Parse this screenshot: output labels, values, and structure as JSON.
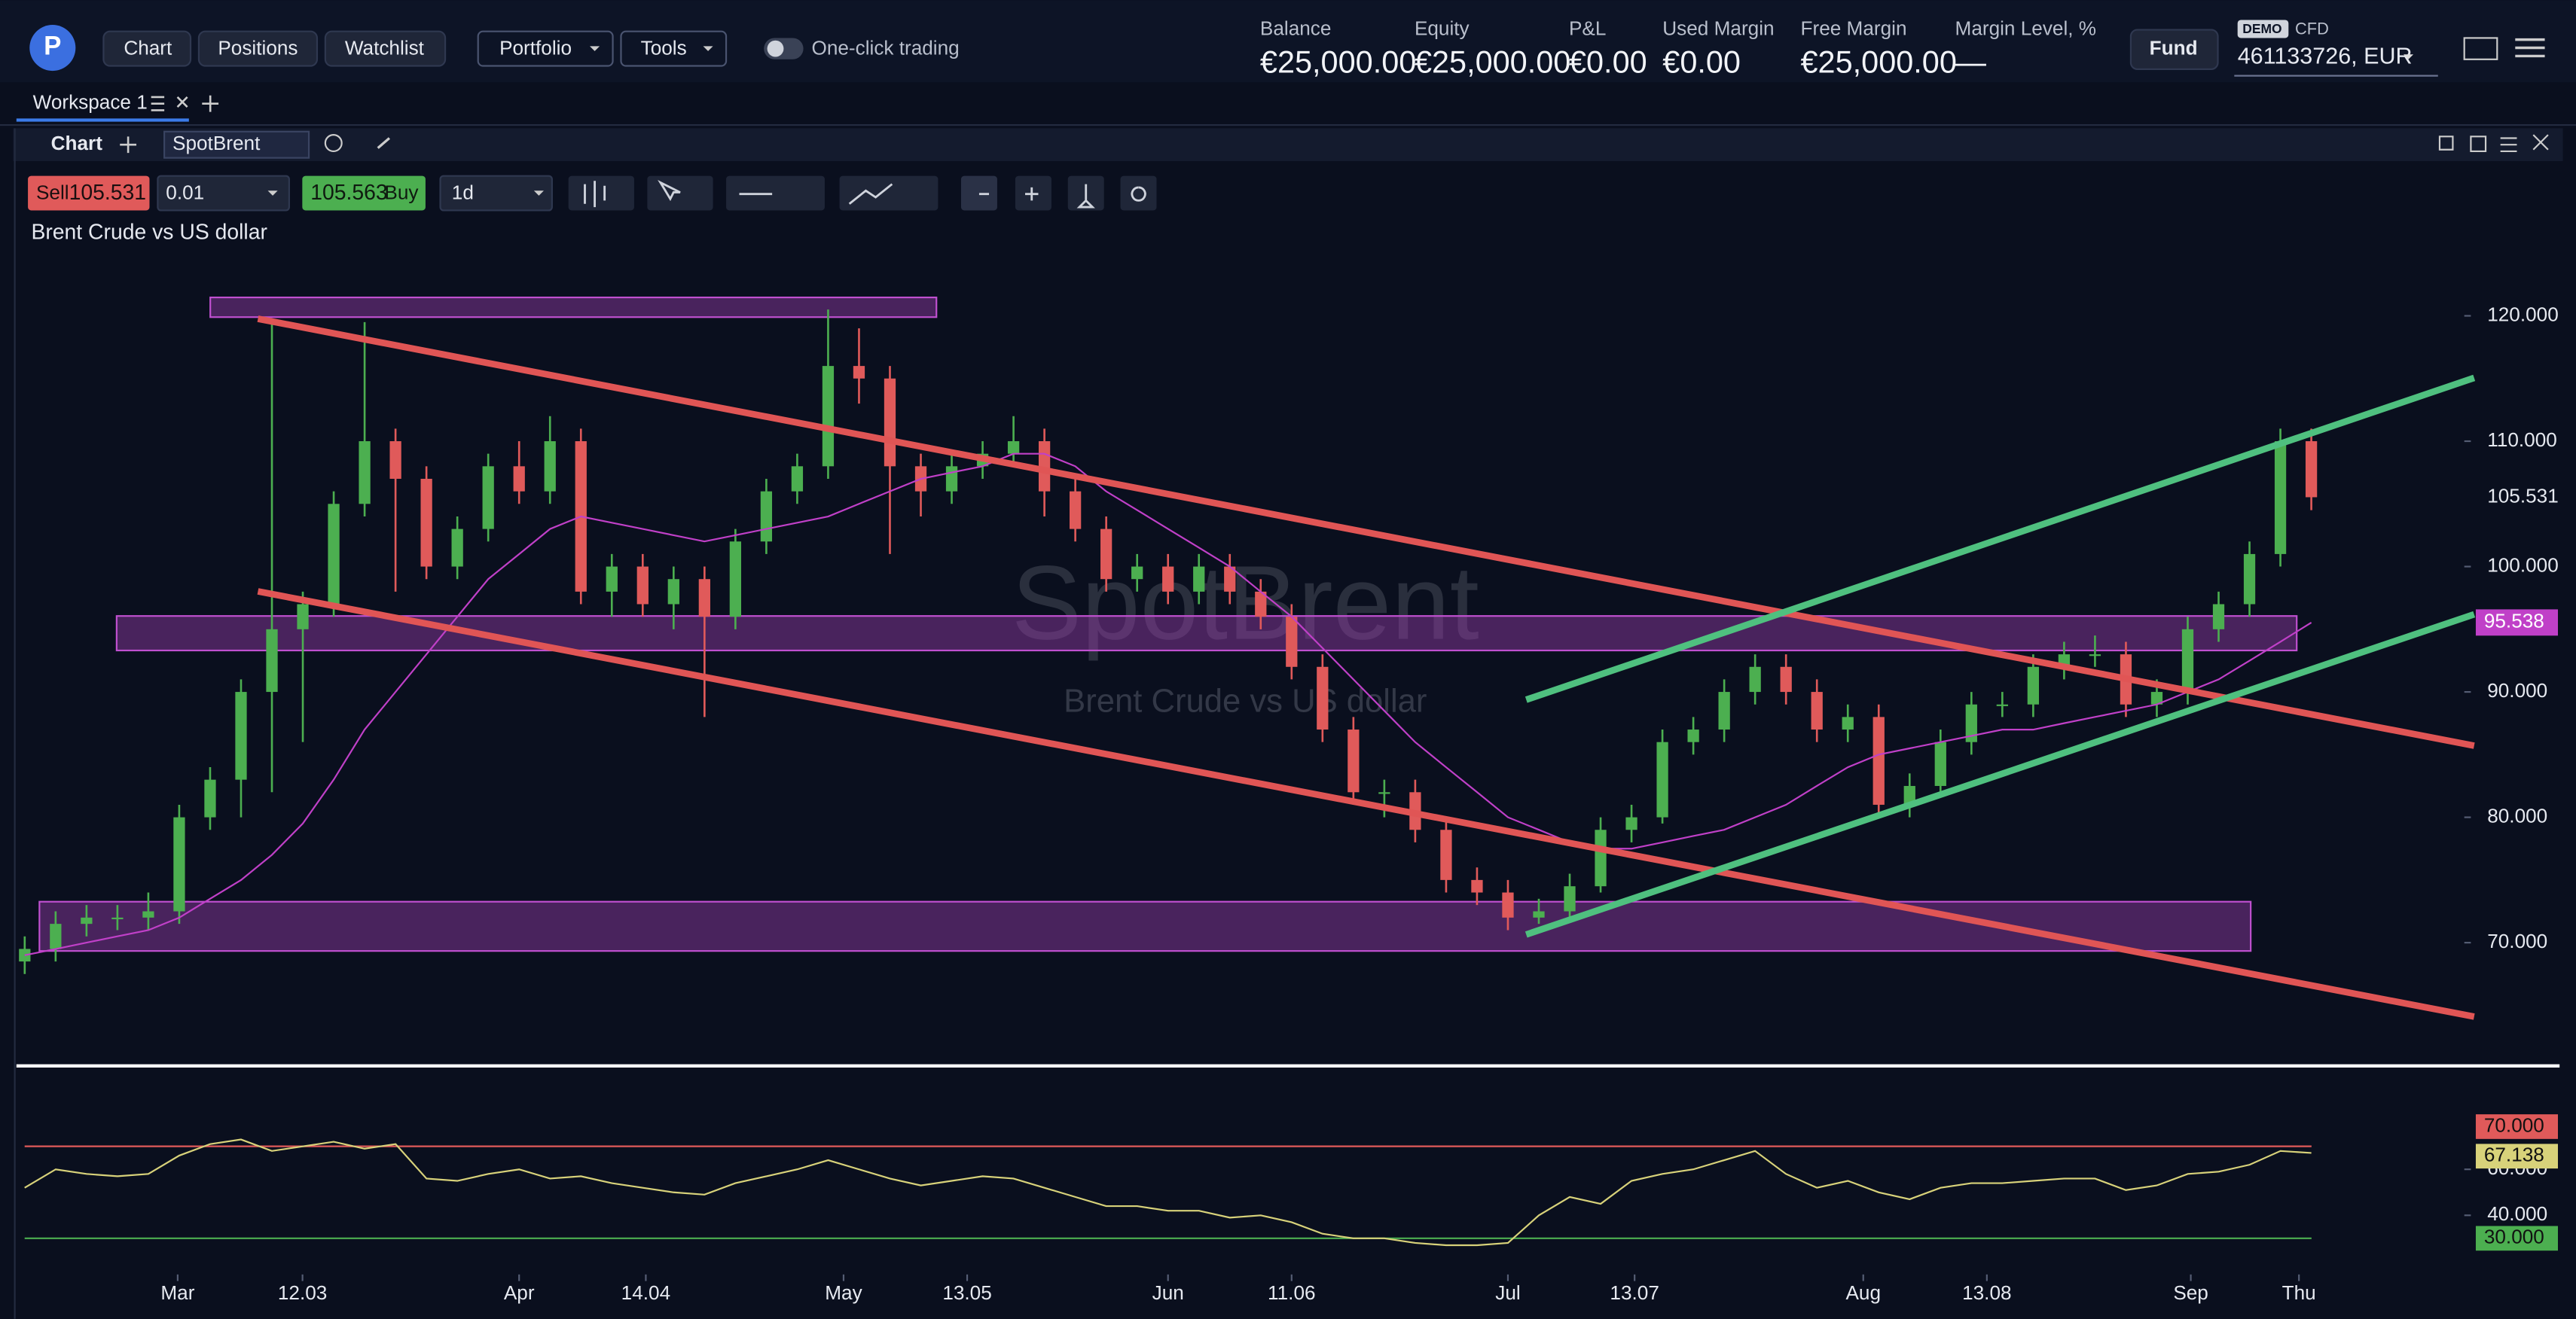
{
  "nav": {
    "buttons": [
      "Chart",
      "Positions",
      "Watchlist"
    ],
    "dropdowns": [
      "Portfolio",
      "Tools"
    ],
    "toggle": "One-click trading"
  },
  "account": {
    "stats": [
      {
        "label": "Balance",
        "value": "€25,000.00"
      },
      {
        "label": "Equity",
        "value": "€25,000.00"
      },
      {
        "label": "P&L",
        "value": "€0.00"
      },
      {
        "label": "Used Margin",
        "value": "€0.00"
      },
      {
        "label": "Free Margin",
        "value": "€25,000.00"
      },
      {
        "label": "Margin Level, %",
        "value": "—"
      }
    ],
    "fund": "Fund",
    "badge": "DEMO",
    "kind": "CFD",
    "account": "461133726, EUR"
  },
  "workspace": "Workspace 1",
  "panel": {
    "title": "Chart",
    "symbol": "SpotBrent"
  },
  "toolbar": {
    "sell": "Sell",
    "sell_price": 105.531,
    "quantity": "0.01",
    "buy_price": 105.563,
    "buy": "Buy",
    "interval": "1d"
  },
  "chart_data": {
    "type": "candlestick",
    "title": "Brent Crude vs US dollar",
    "watermark": "SpotBrent",
    "up_color": "#4caf50",
    "down_color": "#e05a5a",
    "xlim": [
      -0.8,
      78.1
    ],
    "xticks": [
      {
        "value": 4.95,
        "label": "Mar"
      },
      {
        "value": 8.99,
        "label": "12.03"
      },
      {
        "value": 16.0,
        "label": "Apr"
      },
      {
        "value": 20.1,
        "label": "14.04"
      },
      {
        "value": 26.5,
        "label": "May"
      },
      {
        "value": 30.5,
        "label": "13.05"
      },
      {
        "value": 37.0,
        "label": "Jun"
      },
      {
        "value": 41.0,
        "label": "11.06"
      },
      {
        "value": 48.0,
        "label": "Jul"
      },
      {
        "value": 52.1,
        "label": "13.07"
      },
      {
        "value": 59.5,
        "label": "Aug"
      },
      {
        "value": 63.5,
        "label": "13.08"
      },
      {
        "value": 70.1,
        "label": "Sep"
      },
      {
        "value": 73.6,
        "label": "Thu"
      }
    ],
    "ylim": [
      60.3,
      127.1
    ],
    "yticks": [
      {
        "value": 120,
        "label": "120.000"
      },
      {
        "value": 110,
        "label": "110.000"
      },
      {
        "value": 100,
        "label": "100.000"
      },
      {
        "value": 90,
        "label": "90.000"
      },
      {
        "value": 80,
        "label": "80.000"
      },
      {
        "value": 70,
        "label": "70.000"
      }
    ],
    "candles": [
      [
        68.5,
        70.5,
        67.5,
        69.5
      ],
      [
        69.5,
        72.5,
        68.5,
        71.5
      ],
      [
        71.5,
        73,
        70.5,
        72
      ],
      [
        72,
        73,
        71,
        72
      ],
      [
        72,
        74,
        71,
        72.5
      ],
      [
        72.5,
        81,
        71.5,
        80
      ],
      [
        80,
        84,
        79,
        83
      ],
      [
        83,
        91,
        80,
        90
      ],
      [
        90,
        119.6,
        82,
        95
      ],
      [
        95,
        98,
        86,
        97
      ],
      [
        97,
        106,
        96,
        105
      ],
      [
        105,
        119.5,
        104,
        110
      ],
      [
        110,
        111,
        98,
        107
      ],
      [
        107,
        108,
        99,
        100
      ],
      [
        100,
        104,
        99,
        103
      ],
      [
        103,
        109,
        102,
        108
      ],
      [
        108,
        110,
        105,
        106
      ],
      [
        106,
        112,
        105,
        110
      ],
      [
        110,
        111,
        97,
        98
      ],
      [
        98,
        101,
        96,
        100
      ],
      [
        100,
        101,
        96,
        97
      ],
      [
        97,
        100,
        95,
        99
      ],
      [
        99,
        100,
        88,
        96
      ],
      [
        96,
        103,
        95,
        102
      ],
      [
        102,
        107,
        101,
        106
      ],
      [
        106,
        109,
        105,
        108
      ],
      [
        108,
        120.5,
        107,
        116
      ],
      [
        116,
        119,
        113,
        115
      ],
      [
        115,
        116,
        101,
        108
      ],
      [
        108,
        109,
        104,
        106
      ],
      [
        106,
        109,
        105,
        108
      ],
      [
        108,
        110,
        107,
        109
      ],
      [
        109,
        112,
        108,
        110
      ],
      [
        110,
        111,
        104,
        106
      ],
      [
        106,
        107,
        102,
        103
      ],
      [
        103,
        104,
        98,
        99
      ],
      [
        99,
        101,
        98,
        100
      ],
      [
        100,
        101,
        97,
        98
      ],
      [
        98,
        101,
        97,
        100
      ],
      [
        100,
        101,
        97,
        98
      ],
      [
        98,
        99,
        95,
        96
      ],
      [
        96,
        97,
        91,
        92
      ],
      [
        92,
        93,
        86,
        87
      ],
      [
        87,
        88,
        81,
        82
      ],
      [
        82,
        83,
        80,
        82
      ],
      [
        82,
        83,
        78,
        79
      ],
      [
        79,
        80,
        74,
        75
      ],
      [
        75,
        76,
        73,
        74
      ],
      [
        74,
        75,
        71,
        72
      ],
      [
        72,
        73.5,
        71.5,
        72.5
      ],
      [
        72.5,
        75.5,
        72,
        74.5
      ],
      [
        74.5,
        80,
        74,
        79
      ],
      [
        79,
        81,
        78,
        80
      ],
      [
        80,
        87,
        79.5,
        86
      ],
      [
        86,
        88,
        85,
        87
      ],
      [
        87,
        91,
        86,
        90
      ],
      [
        90,
        93,
        89,
        92
      ],
      [
        92,
        93,
        89,
        90
      ],
      [
        90,
        91,
        86,
        87
      ],
      [
        87,
        89,
        86,
        88
      ],
      [
        88,
        89,
        80,
        81
      ],
      [
        81,
        83.5,
        80,
        82.5
      ],
      [
        82.5,
        87,
        82,
        86
      ],
      [
        86,
        90,
        85,
        89
      ],
      [
        89,
        90,
        88,
        89
      ],
      [
        89,
        93,
        88,
        92
      ],
      [
        92,
        94,
        91,
        93
      ],
      [
        93,
        94.5,
        92,
        93
      ],
      [
        93,
        94,
        88,
        89
      ],
      [
        89,
        91,
        88,
        90
      ],
      [
        90,
        96,
        89,
        95
      ],
      [
        95,
        98,
        94,
        97
      ],
      [
        97,
        102,
        96,
        101
      ],
      [
        101,
        111,
        100,
        110
      ],
      [
        110,
        111,
        104.5,
        105.531
      ]
    ],
    "ma": {
      "color": "#c040c8",
      "values": [
        69,
        69.5,
        70,
        70.5,
        71,
        72,
        73.5,
        75,
        77,
        79.5,
        83,
        87,
        90,
        93,
        96,
        99,
        101,
        103,
        104,
        103.5,
        103,
        102.5,
        102,
        102.5,
        103,
        103.5,
        104,
        105,
        106,
        107,
        107.5,
        108,
        109,
        109,
        108,
        106,
        104.5,
        103,
        101.5,
        100,
        98,
        96,
        93.5,
        91,
        88.5,
        86,
        84,
        82,
        80,
        79,
        78,
        77.5,
        77.5,
        78,
        78.5,
        79,
        80,
        81,
        82.5,
        84,
        85,
        85.5,
        86,
        86.5,
        87,
        87,
        87.5,
        88,
        88.5,
        89,
        90,
        91,
        92.5,
        94,
        95.538
      ]
    },
    "rsi": {
      "color": "#d8d27a",
      "ylim": [
        15,
        101.4
      ],
      "yticks": [
        {
          "value": 40,
          "label": "40.000"
        },
        {
          "value": 60,
          "label": "60.000"
        }
      ],
      "levels": [
        {
          "value": 70,
          "label": "70.000",
          "color": "#e05a5a"
        },
        {
          "value": 30,
          "label": "30.000",
          "color": "#4caf50"
        }
      ],
      "values": [
        52,
        60,
        58,
        57,
        58,
        66,
        71,
        73,
        68,
        70,
        72,
        69,
        71,
        56,
        55,
        58,
        60,
        56,
        57,
        54,
        52,
        50,
        49,
        54,
        57,
        60,
        64,
        60,
        56,
        53,
        55,
        57,
        56,
        52,
        48,
        44,
        44,
        42,
        42,
        39,
        40,
        37,
        32,
        30,
        30,
        28,
        27,
        27,
        28,
        40,
        48,
        45,
        55,
        58,
        60,
        64,
        68,
        58,
        52,
        55,
        50,
        47,
        52,
        54,
        54,
        55,
        56,
        56,
        51,
        53,
        58,
        59,
        62,
        68,
        67.138
      ]
    }
  }
}
